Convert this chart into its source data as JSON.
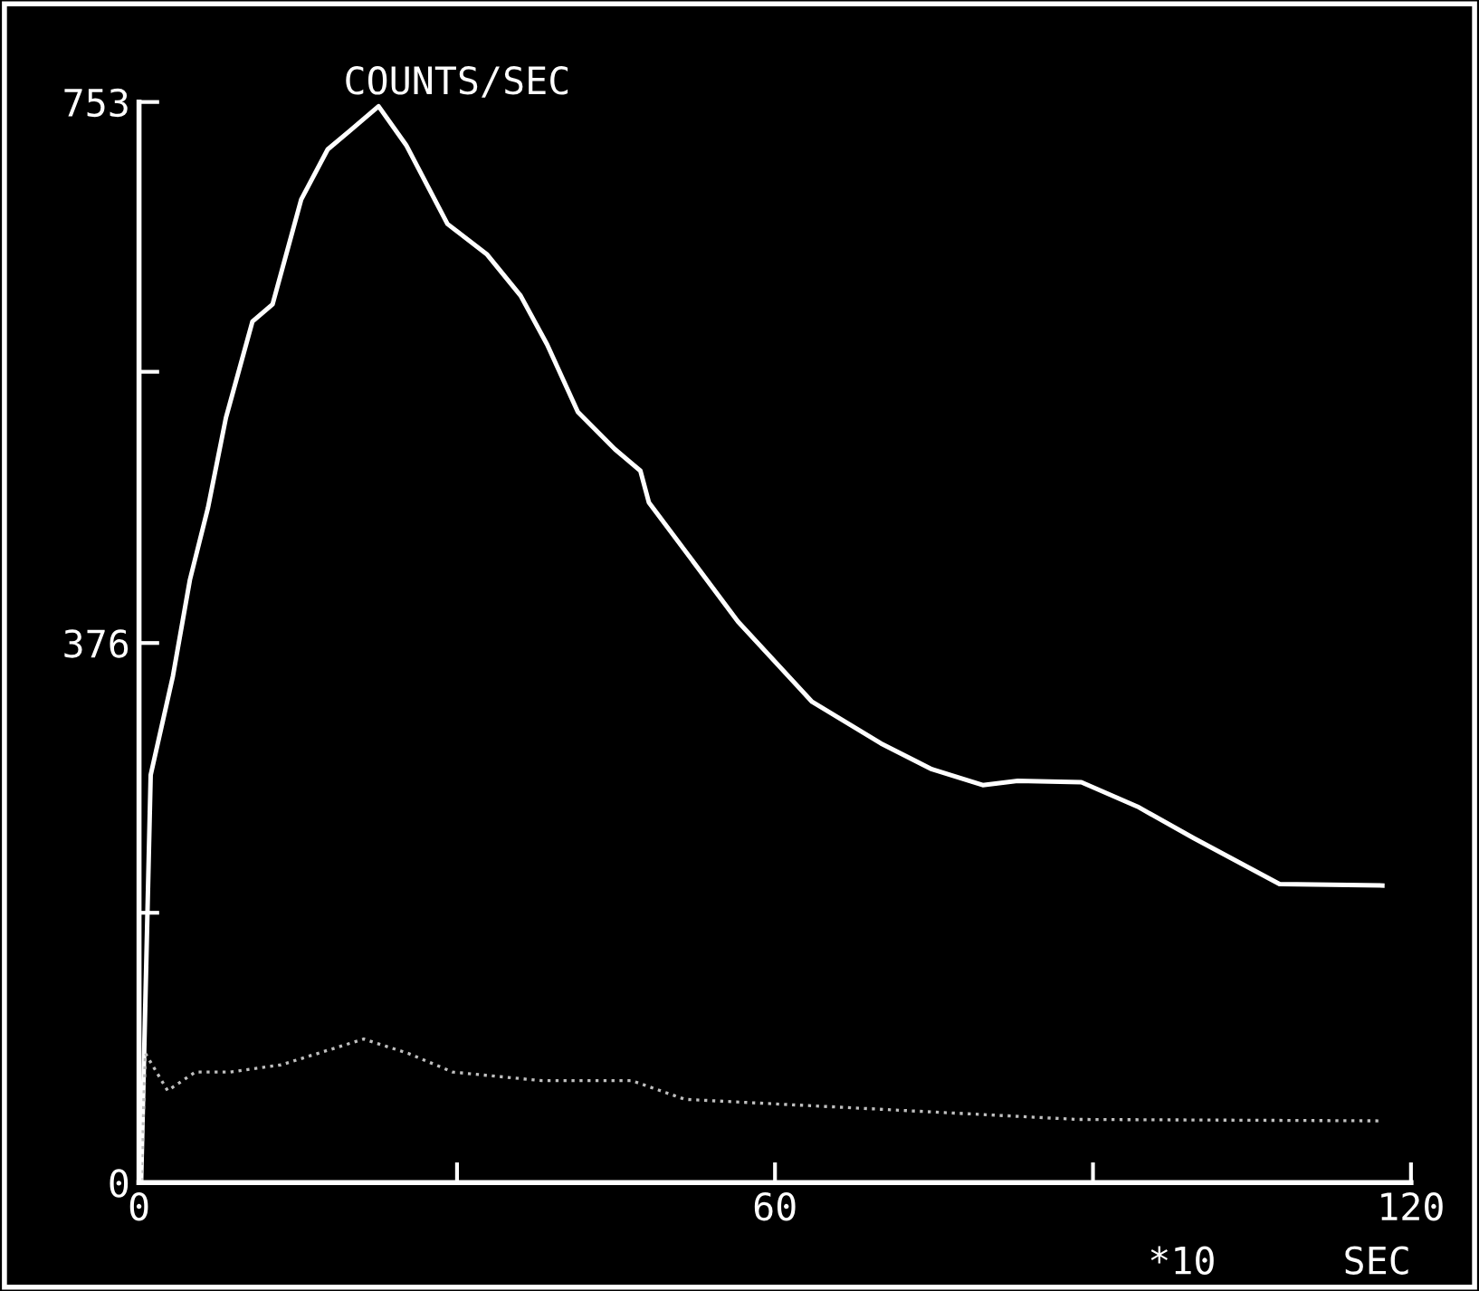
{
  "chart_data": {
    "type": "line",
    "title": "COUNTS/SEC",
    "xlabel": "SEC",
    "annotations": [
      "*10"
    ],
    "xlim": [
      0,
      120
    ],
    "xticks": [
      0,
      {
        "value": 30,
        "label": null
      },
      60,
      {
        "value": 90,
        "label": null
      },
      120
    ],
    "ylim": [
      0,
      753
    ],
    "yticks": [
      0,
      {
        "value": 188,
        "label": null
      },
      376,
      {
        "value": 565,
        "label": null
      },
      753
    ],
    "grid": false,
    "legend": false,
    "marker": "none",
    "series": [
      {
        "color": "#ffffff",
        "line_style": "solid",
        "x": [
          0.2,
          1.1,
          3.2,
          4.8,
          6.5,
          8.2,
          10.7,
          12.6,
          15.3,
          17.8,
          19.9,
          22.6,
          25.2,
          29.1,
          32.8,
          36.0,
          38.5,
          41.4,
          44.9,
          47.3,
          48.1,
          56.5,
          63.5,
          70.0,
          74.8,
          79.6,
          82.9,
          88.9,
          94.2,
          99.5,
          107.6,
          117.3
        ],
        "values": [
          1,
          284,
          353,
          420,
          470,
          533,
          600,
          612,
          685,
          720,
          733,
          750,
          723,
          668,
          647,
          618,
          584,
          537,
          511,
          496,
          474,
          391,
          335,
          306,
          288,
          277,
          280,
          279,
          262,
          240,
          208,
          207
        ]
      },
      {
        "color": "#bfbfbf",
        "line_style": "dotted",
        "x": [
          0.2,
          0.6,
          2.7,
          5.3,
          8.6,
          13.4,
          21.2,
          25.4,
          29.6,
          38.0,
          46.5,
          51.5,
          67.5,
          88.5,
          117.1
        ],
        "values": [
          1,
          90,
          64,
          77,
          77,
          82,
          100,
          90,
          77,
          71,
          71,
          58,
          52,
          44,
          43
        ]
      }
    ]
  }
}
